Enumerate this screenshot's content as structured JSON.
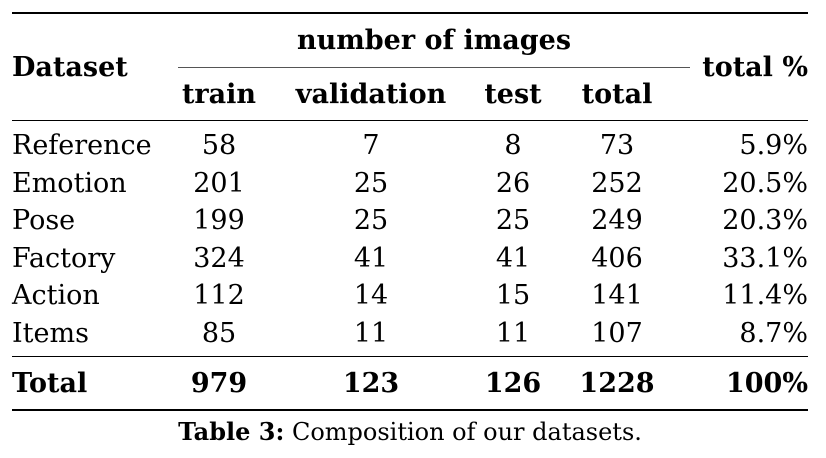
{
  "table": {
    "header": {
      "dataset": "Dataset",
      "group": "number of images",
      "train": "train",
      "validation": "validation",
      "test": "test",
      "total": "total",
      "total_pct": "total %"
    },
    "rows": [
      {
        "name": "Reference",
        "train": "58",
        "validation": "7",
        "test": "8",
        "total": "73",
        "pct": "5.9%"
      },
      {
        "name": "Emotion",
        "train": "201",
        "validation": "25",
        "test": "26",
        "total": "252",
        "pct": "20.5%"
      },
      {
        "name": "Pose",
        "train": "199",
        "validation": "25",
        "test": "25",
        "total": "249",
        "pct": "20.3%"
      },
      {
        "name": "Factory",
        "train": "324",
        "validation": "41",
        "test": "41",
        "total": "406",
        "pct": "33.1%"
      },
      {
        "name": "Action",
        "train": "112",
        "validation": "14",
        "test": "15",
        "total": "141",
        "pct": "11.4%"
      },
      {
        "name": "Items",
        "train": "85",
        "validation": "11",
        "test": "11",
        "total": "107",
        "pct": "8.7%"
      }
    ],
    "total_row": {
      "name": "Total",
      "train": "979",
      "validation": "123",
      "test": "126",
      "total": "1228",
      "pct": "100%"
    }
  },
  "caption": {
    "label": "Table 3:",
    "text": "Composition of our datasets."
  }
}
